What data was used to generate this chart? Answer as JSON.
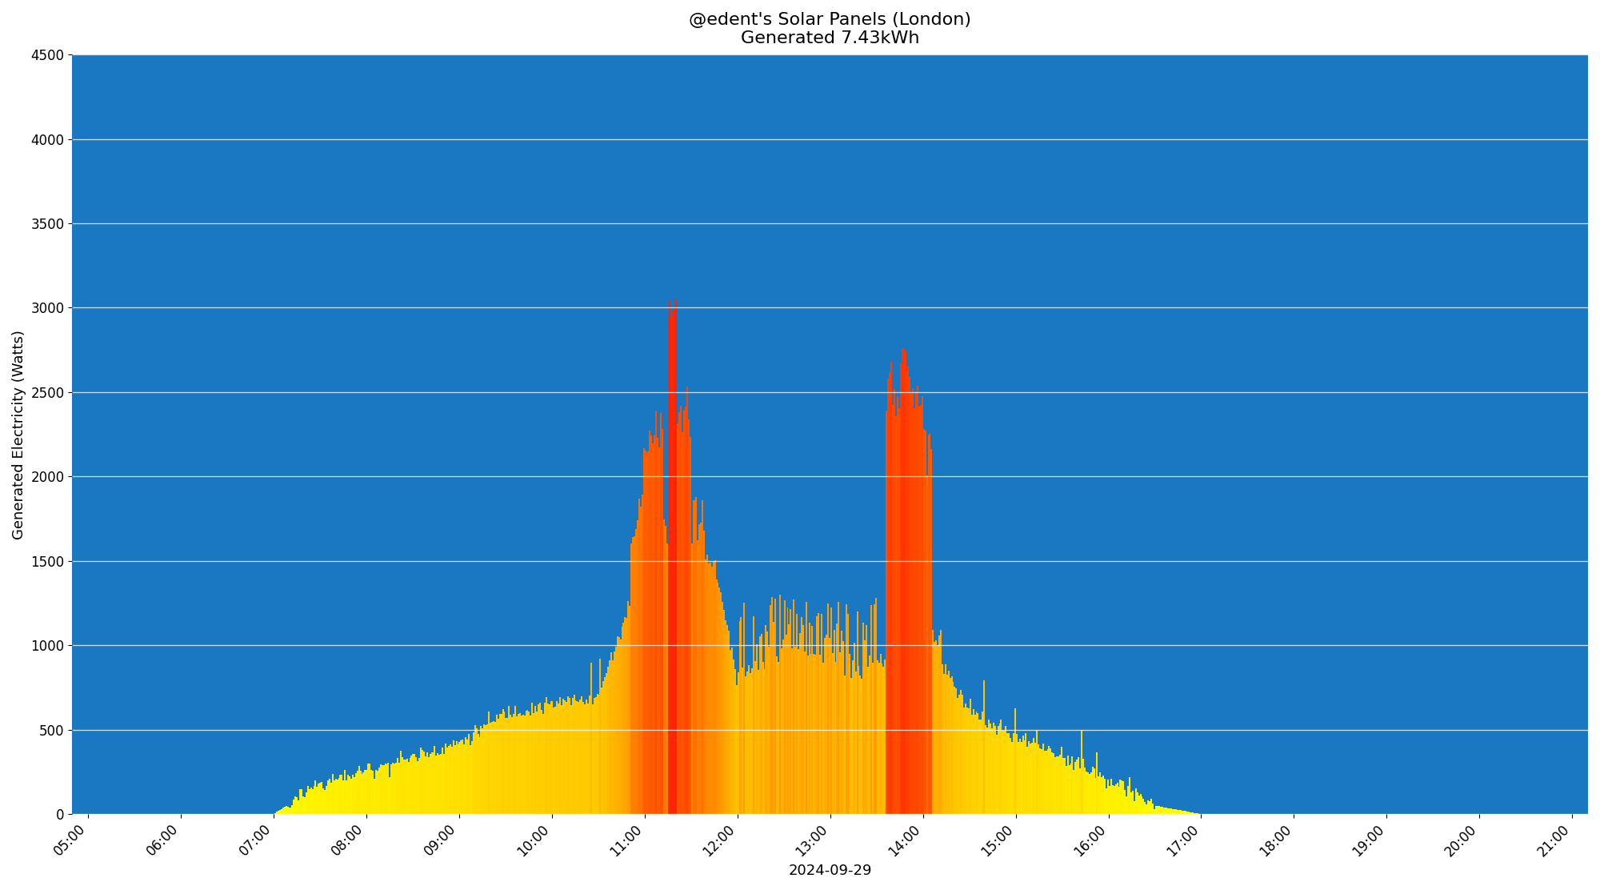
{
  "title_line1": "@edent's Solar Panels (London)",
  "title_line2": "Generated 7.43kWh",
  "xlabel": "2024-09-29",
  "ylabel": "Generated Electricity (Watts)",
  "background_color": "#1a78c2",
  "ylim": [
    0,
    4500
  ],
  "yticks": [
    0,
    500,
    1000,
    1500,
    2000,
    2500,
    3000,
    3500,
    4000,
    4500
  ],
  "xticks": [
    "05:00",
    "06:00",
    "07:00",
    "08:00",
    "09:00",
    "10:00",
    "11:00",
    "12:00",
    "13:00",
    "14:00",
    "15:00",
    "16:00",
    "17:00",
    "18:00",
    "19:00",
    "20:00",
    "21:00"
  ],
  "grid_color": "white",
  "title_fontsize": 16,
  "axis_label_fontsize": 13,
  "tick_fontsize": 12,
  "color_low": "#ffff00",
  "color_mid": "#ff8800",
  "color_high": "#ff2200",
  "vmax": 3050
}
